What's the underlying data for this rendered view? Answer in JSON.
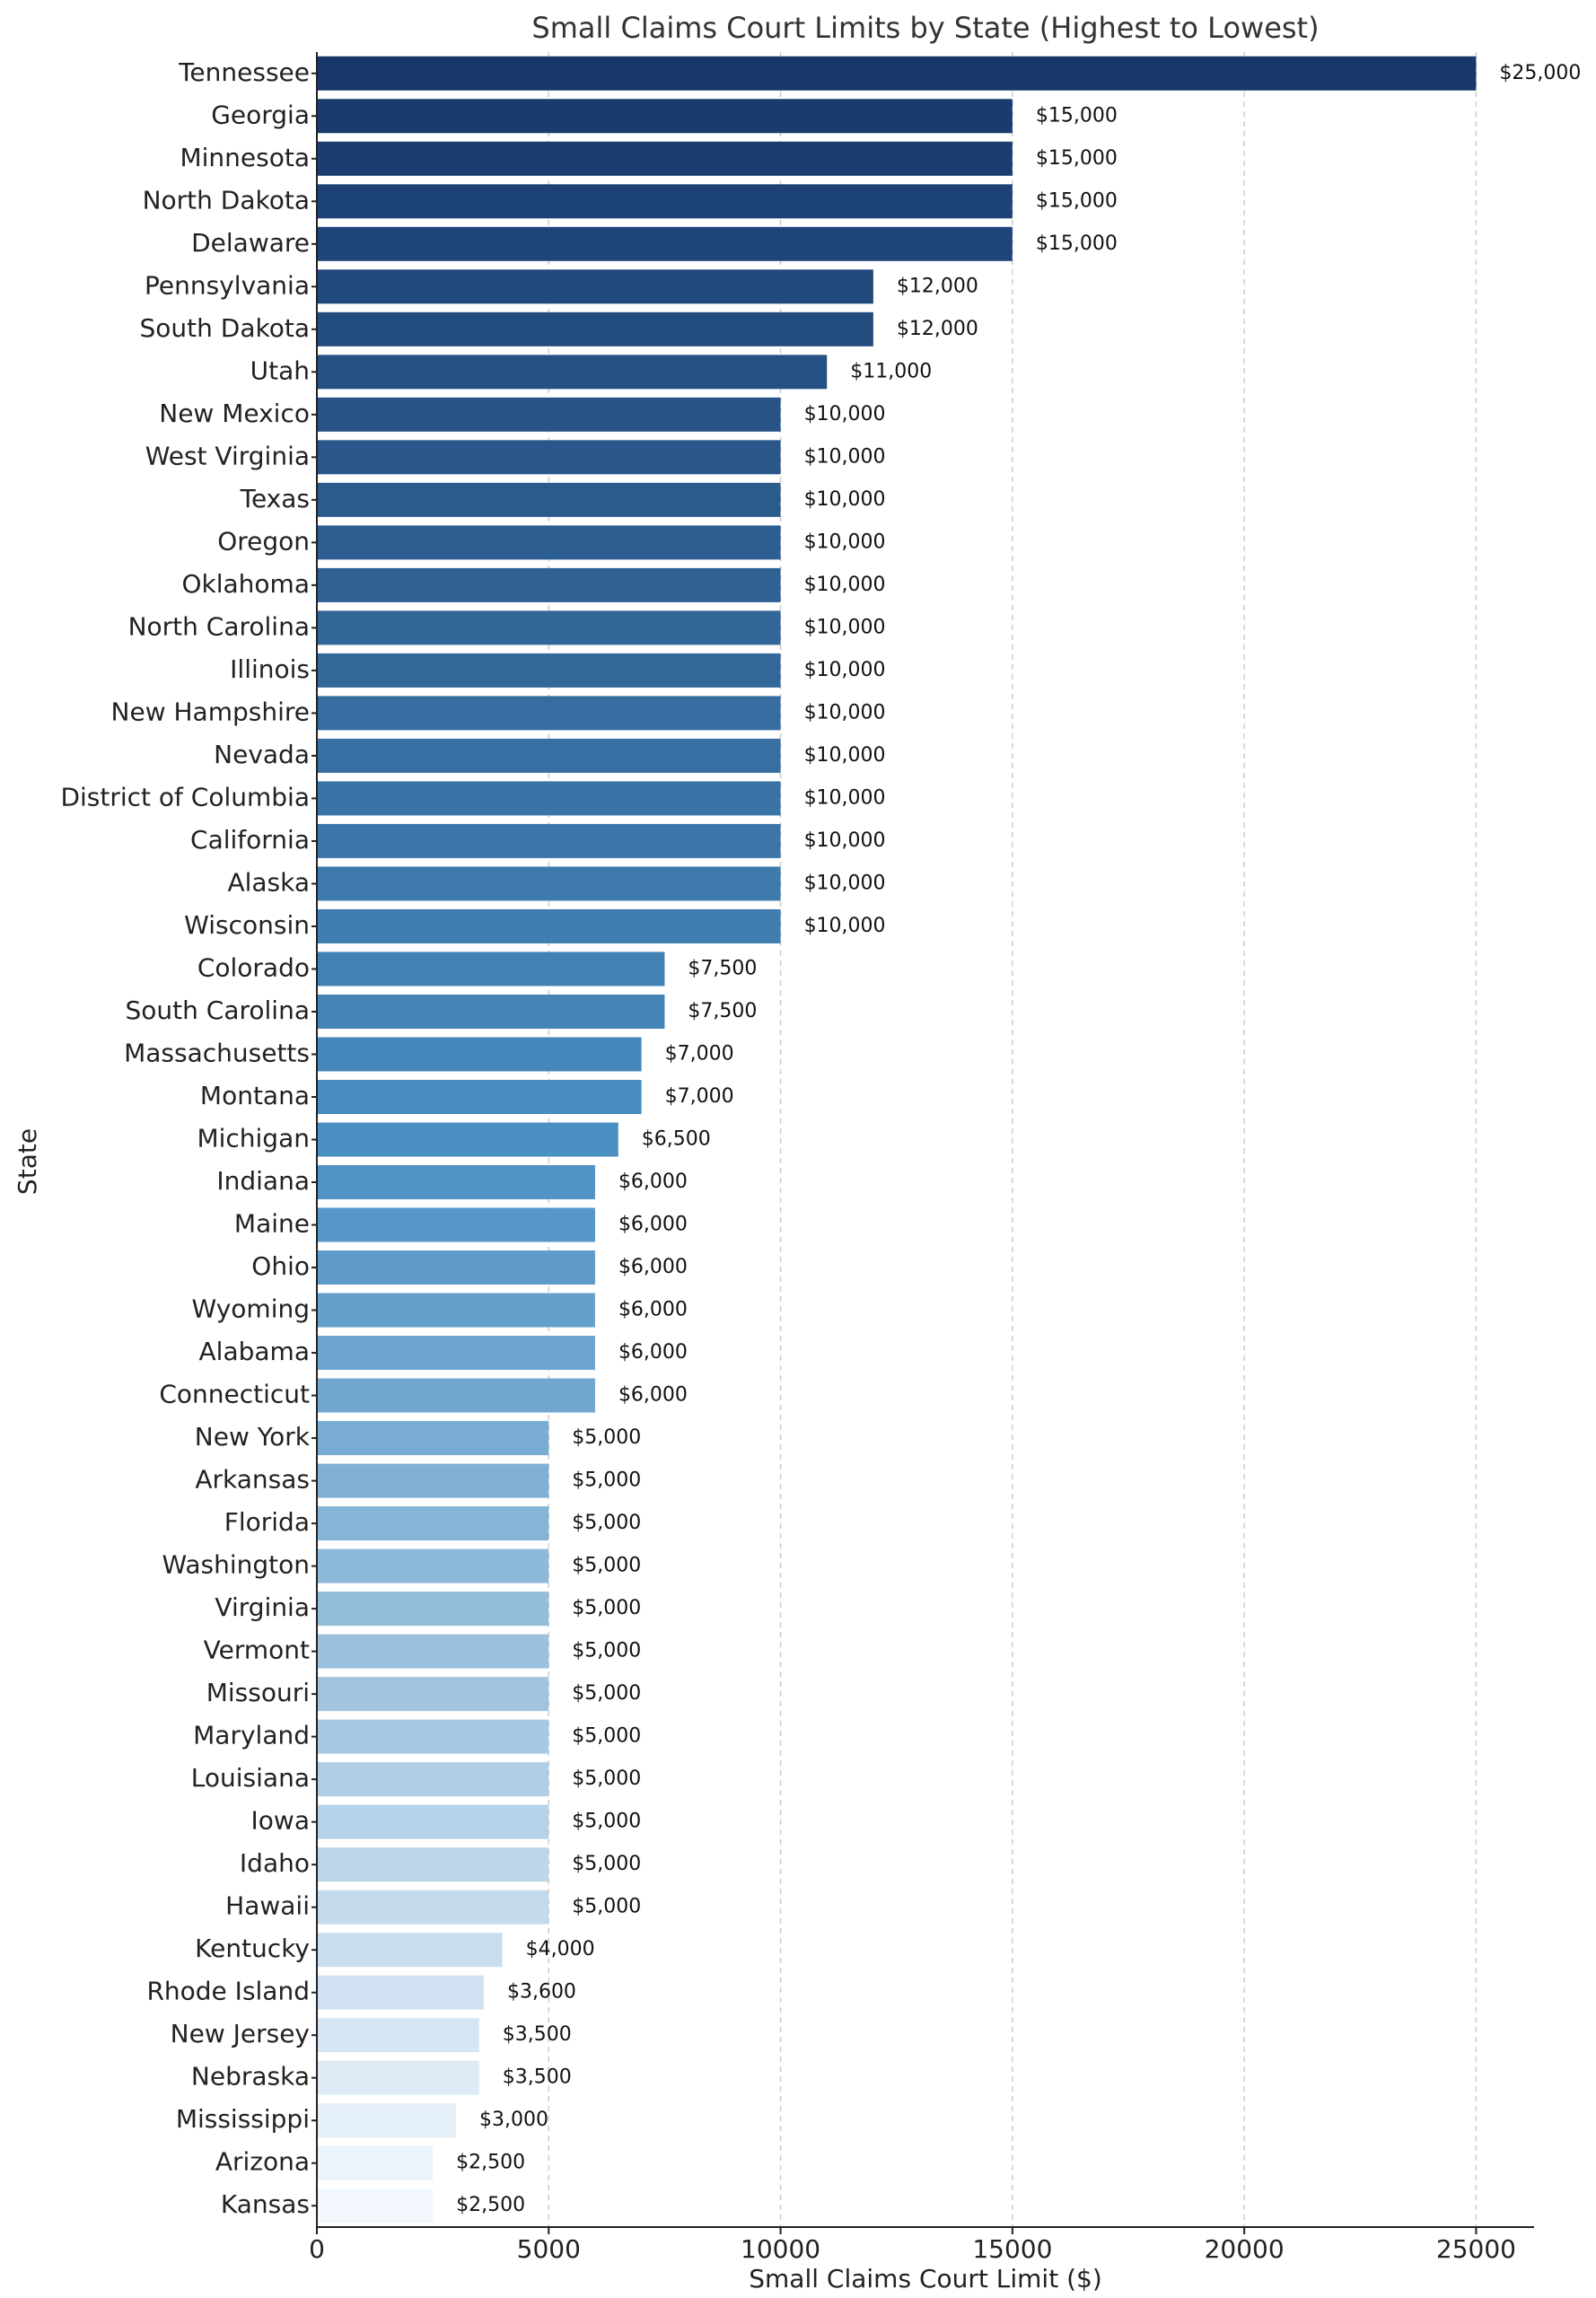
{
  "chart_data": {
    "type": "barh",
    "title": "Small Claims Court Limits by State (Highest to Lowest)",
    "x_label": "Small Claims Court Limit ($)",
    "y_label": "State",
    "categories": [
      "Tennessee",
      "Georgia",
      "Minnesota",
      "North Dakota",
      "Delaware",
      "Pennsylvania",
      "South Dakota",
      "Utah",
      "New Mexico",
      "West Virginia",
      "Texas",
      "Oregon",
      "Oklahoma",
      "North Carolina",
      "Illinois",
      "New Hampshire",
      "Nevada",
      "District of Columbia",
      "California",
      "Alaska",
      "Wisconsin",
      "Colorado",
      "South Carolina",
      "Massachusetts",
      "Montana",
      "Michigan",
      "Indiana",
      "Maine",
      "Ohio",
      "Wyoming",
      "Alabama",
      "Connecticut",
      "New York",
      "Arkansas",
      "Florida",
      "Washington",
      "Virginia",
      "Vermont",
      "Missouri",
      "Maryland",
      "Louisiana",
      "Iowa",
      "Idaho",
      "Hawaii",
      "Kentucky",
      "Rhode Island",
      "New Jersey",
      "Nebraska",
      "Mississippi",
      "Arizona",
      "Kansas"
    ],
    "values": [
      25000,
      15000,
      15000,
      15000,
      15000,
      12000,
      12000,
      11000,
      10000,
      10000,
      10000,
      10000,
      10000,
      10000,
      10000,
      10000,
      10000,
      10000,
      10000,
      10000,
      10000,
      7500,
      7500,
      7000,
      7000,
      6500,
      6000,
      6000,
      6000,
      6000,
      6000,
      6000,
      5000,
      5000,
      5000,
      5000,
      5000,
      5000,
      5000,
      5000,
      5000,
      5000,
      5000,
      5000,
      4000,
      3600,
      3500,
      3500,
      3000,
      2500,
      2500
    ],
    "value_labels": [
      "$25,000",
      "$15,000",
      "$15,000",
      "$15,000",
      "$15,000",
      "$12,000",
      "$12,000",
      "$11,000",
      "$10,000",
      "$10,000",
      "$10,000",
      "$10,000",
      "$10,000",
      "$10,000",
      "$10,000",
      "$10,000",
      "$10,000",
      "$10,000",
      "$10,000",
      "$10,000",
      "$10,000",
      "$7,500",
      "$7,500",
      "$7,000",
      "$7,000",
      "$6,500",
      "$6,000",
      "$6,000",
      "$6,000",
      "$6,000",
      "$6,000",
      "$6,000",
      "$5,000",
      "$5,000",
      "$5,000",
      "$5,000",
      "$5,000",
      "$5,000",
      "$5,000",
      "$5,000",
      "$5,000",
      "$5,000",
      "$5,000",
      "$5,000",
      "$4,000",
      "$3,600",
      "$3,500",
      "$3,500",
      "$3,000",
      "$2,500",
      "$2,500"
    ],
    "color_stops": [
      "#17376a",
      "#4a8fc2",
      "#f2f7fd"
    ],
    "xlim": [
      0,
      26250
    ],
    "xticks": [
      0,
      5000,
      10000,
      15000,
      20000,
      25000
    ],
    "grid": true
  }
}
